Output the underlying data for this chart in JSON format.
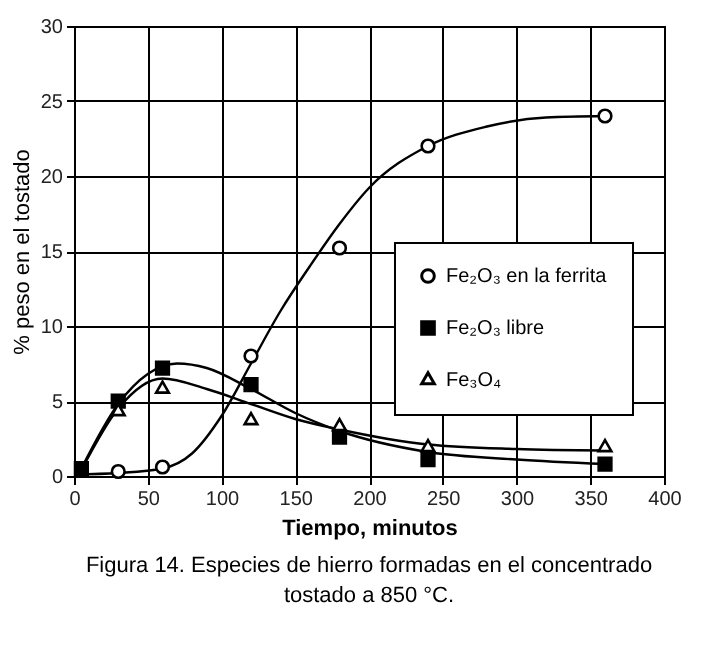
{
  "chart_data": {
    "type": "scatter",
    "xlabel": "Tiempo, minutos",
    "ylabel": "% peso en el tostado",
    "annotations": [
      "Figura 14. Especies de hierro formadas en el concentrado tostado a 850 °C."
    ],
    "xlim": [
      0,
      400
    ],
    "xticks": [
      0,
      50,
      100,
      150,
      200,
      250,
      300,
      350,
      400
    ],
    "ylim": [
      0,
      30
    ],
    "yticks": [
      0,
      5,
      10,
      15,
      20,
      25,
      30
    ],
    "grid": true,
    "legend": "right",
    "series": [
      {
        "name": "Fe₂O₃ en la ferrita",
        "marker": "circle",
        "color": "#000000",
        "x": [
          30,
          60,
          120,
          180,
          240,
          360
        ],
        "values": [
          0.3,
          0.6,
          8,
          15.2,
          22,
          24
        ]
      },
      {
        "name": "Fe₂O₃ libre",
        "marker": "square",
        "color": "#000000",
        "x": [
          5,
          30,
          60,
          120,
          180,
          240,
          360
        ],
        "values": [
          0.5,
          5,
          7.2,
          6.1,
          2.6,
          1.1,
          0.8
        ]
      },
      {
        "name": "Fe₃O₄",
        "marker": "triangle",
        "color": "#000000",
        "x": [
          30,
          60,
          120,
          180,
          240,
          360
        ],
        "values": [
          4.3,
          5.8,
          3.7,
          3.3,
          1.9,
          1.9
        ]
      },
      {
        "type": "line",
        "color": "#000000",
        "x": [
          0,
          30,
          60,
          80,
          100,
          120,
          140,
          160,
          180,
          200,
          240,
          280,
          320,
          360
        ],
        "values": [
          0.1,
          0.2,
          0.5,
          1.5,
          4,
          7.5,
          11,
          14,
          16.8,
          19.2,
          22,
          23.3,
          23.9,
          24
        ]
      },
      {
        "type": "line",
        "color": "#000000",
        "x": [
          5,
          30,
          50,
          70,
          90,
          120,
          150,
          180,
          240,
          300,
          360
        ],
        "values": [
          0.5,
          4.8,
          6.8,
          7.5,
          7.2,
          5.8,
          4.2,
          3,
          1.6,
          1.1,
          0.8
        ]
      },
      {
        "type": "line",
        "color": "#000000",
        "x": [
          5,
          30,
          60,
          90,
          120,
          150,
          180,
          240,
          300,
          360
        ],
        "values": [
          0.4,
          4.5,
          6.5,
          5.8,
          4.8,
          3.8,
          3.1,
          2.1,
          1.8,
          1.7
        ]
      }
    ]
  }
}
